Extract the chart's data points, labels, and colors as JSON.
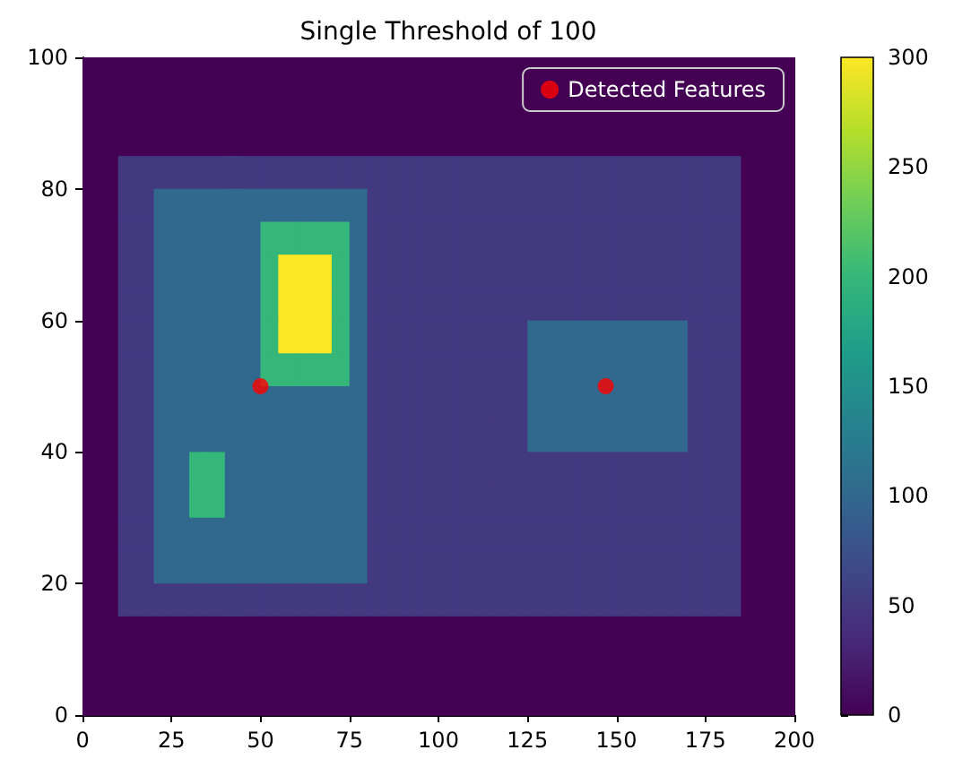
{
  "chart_data": {
    "type": "heatmap",
    "title": "Single Threshold of 100",
    "xlim": [
      0,
      200
    ],
    "xticks": [
      0,
      25,
      50,
      75,
      100,
      125,
      150,
      175,
      200
    ],
    "ylim": [
      0,
      100
    ],
    "yticks": [
      0,
      20,
      40,
      60,
      80,
      100
    ],
    "clim": [
      0,
      300
    ],
    "cticks": [
      0,
      50,
      100,
      150,
      200,
      250,
      300
    ],
    "legend": "top right",
    "marker": "circle",
    "cells": [
      [
        0,
        0,
        0,
        0,
        0,
        0,
        0,
        0,
        0,
        0,
        0,
        0,
        0,
        0,
        0,
        0,
        0,
        0,
        0,
        0,
        0,
        0,
        0,
        0,
        0,
        0,
        0,
        0,
        0,
        0,
        0,
        0,
        0,
        0,
        0,
        0,
        0,
        0,
        0,
        0
      ],
      [
        0,
        0,
        0,
        0,
        0,
        0,
        0,
        0,
        0,
        0,
        0,
        0,
        0,
        0,
        0,
        0,
        0,
        0,
        0,
        0,
        0,
        0,
        0,
        0,
        0,
        0,
        0,
        0,
        0,
        0,
        0,
        0,
        0,
        0,
        0,
        0,
        0,
        0,
        0,
        0
      ],
      [
        0,
        0,
        0,
        0,
        0,
        0,
        0,
        0,
        0,
        0,
        0,
        0,
        0,
        0,
        0,
        0,
        0,
        0,
        0,
        0,
        0,
        0,
        0,
        0,
        0,
        0,
        0,
        0,
        0,
        0,
        0,
        0,
        0,
        0,
        0,
        0,
        0,
        0,
        0,
        0
      ],
      [
        0,
        0,
        50,
        50,
        50,
        50,
        50,
        50,
        50,
        50,
        50,
        50,
        50,
        50,
        50,
        50,
        50,
        50,
        50,
        50,
        50,
        50,
        50,
        50,
        50,
        50,
        50,
        50,
        50,
        50,
        50,
        50,
        50,
        50,
        50,
        50,
        50,
        0,
        0,
        0
      ],
      [
        0,
        0,
        50,
        50,
        100,
        100,
        100,
        100,
        100,
        100,
        100,
        100,
        100,
        100,
        100,
        100,
        50,
        50,
        50,
        50,
        50,
        50,
        50,
        50,
        50,
        50,
        50,
        50,
        50,
        50,
        50,
        50,
        50,
        50,
        50,
        50,
        50,
        0,
        0,
        0
      ],
      [
        0,
        0,
        50,
        50,
        100,
        100,
        100,
        100,
        100,
        100,
        200,
        200,
        200,
        200,
        200,
        100,
        50,
        50,
        50,
        50,
        50,
        50,
        50,
        50,
        50,
        50,
        50,
        50,
        50,
        50,
        50,
        50,
        50,
        50,
        50,
        50,
        50,
        0,
        0,
        0
      ],
      [
        0,
        0,
        50,
        50,
        100,
        100,
        100,
        100,
        100,
        100,
        200,
        300,
        300,
        300,
        200,
        100,
        50,
        50,
        50,
        50,
        50,
        50,
        50,
        50,
        50,
        50,
        50,
        50,
        50,
        50,
        50,
        50,
        50,
        50,
        50,
        50,
        50,
        0,
        0,
        0
      ],
      [
        0,
        0,
        50,
        50,
        100,
        100,
        100,
        100,
        100,
        100,
        200,
        300,
        300,
        300,
        200,
        100,
        50,
        50,
        50,
        50,
        50,
        50,
        50,
        50,
        50,
        50,
        50,
        50,
        50,
        50,
        50,
        50,
        50,
        50,
        50,
        50,
        50,
        0,
        0,
        0
      ],
      [
        0,
        0,
        50,
        50,
        100,
        100,
        100,
        100,
        100,
        100,
        200,
        300,
        300,
        300,
        200,
        100,
        50,
        50,
        50,
        50,
        50,
        50,
        50,
        50,
        50,
        100,
        100,
        100,
        100,
        100,
        100,
        100,
        100,
        100,
        50,
        50,
        50,
        0,
        0,
        0
      ],
      [
        0,
        0,
        50,
        50,
        100,
        100,
        100,
        100,
        100,
        100,
        200,
        200,
        200,
        200,
        200,
        100,
        50,
        50,
        50,
        50,
        50,
        50,
        50,
        50,
        50,
        100,
        100,
        100,
        100,
        100,
        100,
        100,
        100,
        100,
        50,
        50,
        50,
        0,
        0,
        0
      ],
      [
        0,
        0,
        50,
        50,
        100,
        100,
        100,
        100,
        100,
        100,
        100,
        100,
        100,
        100,
        100,
        100,
        50,
        50,
        50,
        50,
        50,
        50,
        50,
        50,
        50,
        100,
        100,
        100,
        100,
        100,
        100,
        100,
        100,
        100,
        50,
        50,
        50,
        0,
        0,
        0
      ],
      [
        0,
        0,
        50,
        50,
        100,
        100,
        100,
        100,
        100,
        100,
        100,
        100,
        100,
        100,
        100,
        100,
        50,
        50,
        50,
        50,
        50,
        50,
        50,
        50,
        50,
        100,
        100,
        100,
        100,
        100,
        100,
        100,
        100,
        100,
        50,
        50,
        50,
        0,
        0,
        0
      ],
      [
        0,
        0,
        50,
        50,
        100,
        100,
        200,
        200,
        100,
        100,
        100,
        100,
        100,
        100,
        100,
        100,
        50,
        50,
        50,
        50,
        50,
        50,
        50,
        50,
        50,
        50,
        50,
        50,
        50,
        50,
        50,
        50,
        50,
        50,
        50,
        50,
        50,
        0,
        0,
        0
      ],
      [
        0,
        0,
        50,
        50,
        100,
        100,
        200,
        200,
        100,
        100,
        100,
        100,
        100,
        100,
        100,
        100,
        50,
        50,
        50,
        50,
        50,
        50,
        50,
        50,
        50,
        50,
        50,
        50,
        50,
        50,
        50,
        50,
        50,
        50,
        50,
        50,
        50,
        0,
        0,
        0
      ],
      [
        0,
        0,
        50,
        50,
        100,
        100,
        100,
        100,
        100,
        100,
        100,
        100,
        100,
        100,
        100,
        100,
        50,
        50,
        50,
        50,
        50,
        50,
        50,
        50,
        50,
        50,
        50,
        50,
        50,
        50,
        50,
        50,
        50,
        50,
        50,
        50,
        50,
        0,
        0,
        0
      ],
      [
        0,
        0,
        50,
        50,
        100,
        100,
        100,
        100,
        100,
        100,
        100,
        100,
        100,
        100,
        100,
        100,
        50,
        50,
        50,
        50,
        50,
        50,
        50,
        50,
        50,
        50,
        50,
        50,
        50,
        50,
        50,
        50,
        50,
        50,
        50,
        50,
        50,
        0,
        0,
        0
      ],
      [
        0,
        0,
        50,
        50,
        50,
        50,
        50,
        50,
        50,
        50,
        50,
        50,
        50,
        50,
        50,
        50,
        50,
        50,
        50,
        50,
        50,
        50,
        50,
        50,
        50,
        50,
        50,
        50,
        50,
        50,
        50,
        50,
        50,
        50,
        50,
        50,
        50,
        0,
        0,
        0
      ],
      [
        0,
        0,
        0,
        0,
        0,
        0,
        0,
        0,
        0,
        0,
        0,
        0,
        0,
        0,
        0,
        0,
        0,
        0,
        0,
        0,
        0,
        0,
        0,
        0,
        0,
        0,
        0,
        0,
        0,
        0,
        0,
        0,
        0,
        0,
        0,
        0,
        0,
        0,
        0,
        0
      ],
      [
        0,
        0,
        0,
        0,
        0,
        0,
        0,
        0,
        0,
        0,
        0,
        0,
        0,
        0,
        0,
        0,
        0,
        0,
        0,
        0,
        0,
        0,
        0,
        0,
        0,
        0,
        0,
        0,
        0,
        0,
        0,
        0,
        0,
        0,
        0,
        0,
        0,
        0,
        0,
        0
      ],
      [
        0,
        0,
        0,
        0,
        0,
        0,
        0,
        0,
        0,
        0,
        0,
        0,
        0,
        0,
        0,
        0,
        0,
        0,
        0,
        0,
        0,
        0,
        0,
        0,
        0,
        0,
        0,
        0,
        0,
        0,
        0,
        0,
        0,
        0,
        0,
        0,
        0,
        0,
        0,
        0
      ]
    ],
    "series": [
      {
        "type": "scatter",
        "name": "Detected Features",
        "color": "#ff0000",
        "x": [
          50,
          147
        ],
        "values": [
          50,
          50
        ]
      }
    ]
  }
}
